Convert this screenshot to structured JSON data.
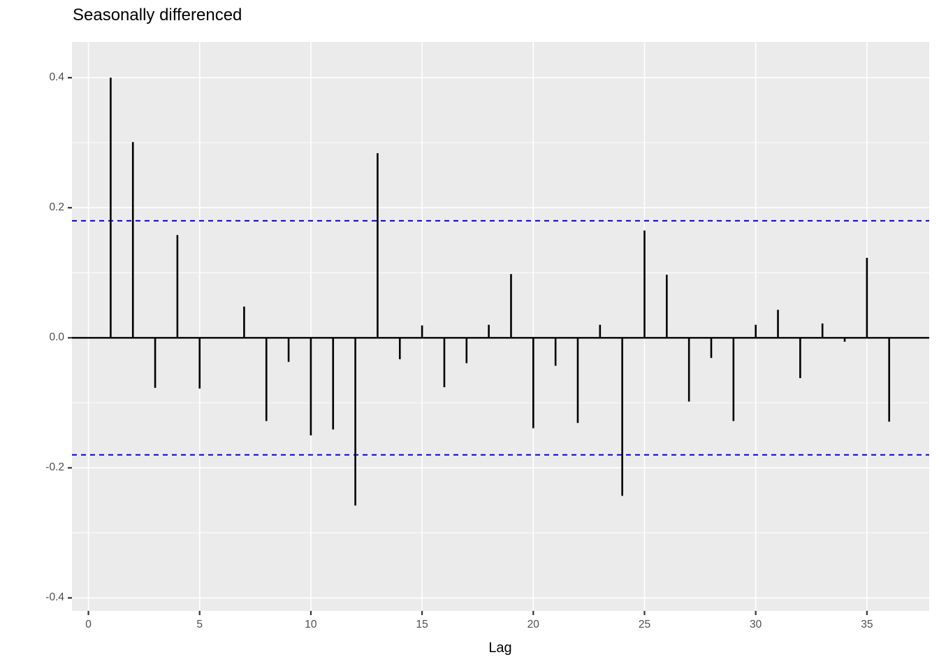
{
  "chart_data": {
    "type": "bar",
    "subtype": "acf-stem-plot",
    "title": "Seasonally differenced",
    "xlabel": "Lag",
    "ylabel": "",
    "legend": "none",
    "grid": "on",
    "panel_bg": "#EBEBEB",
    "grid_color": "#FFFFFF",
    "spike_color": "#000000",
    "zero_line_color": "#000000",
    "bound_color": "#0000EE",
    "tick_color": "#333333",
    "tick_label_color": "#4D4D4D",
    "xlim": [
      -0.74,
      37.8
    ],
    "ylim": [
      -0.42,
      0.455
    ],
    "x_ticks": [
      0,
      5,
      10,
      15,
      20,
      25,
      30,
      35
    ],
    "y_ticks": [
      "0.4",
      "0.2",
      "0.0",
      "-0.2",
      "-0.4"
    ],
    "y_tick_values": [
      0.4,
      0.2,
      0.0,
      -0.2,
      -0.4
    ],
    "y_minor_values": [
      0.3,
      0.1,
      -0.1,
      -0.3
    ],
    "confidence_bounds": [
      0.18,
      -0.18
    ],
    "lags": [
      1,
      2,
      3,
      4,
      5,
      6,
      7,
      8,
      9,
      10,
      11,
      12,
      13,
      14,
      15,
      16,
      17,
      18,
      19,
      20,
      21,
      22,
      23,
      24,
      25,
      26,
      27,
      28,
      29,
      30,
      31,
      32,
      33,
      34,
      35,
      36
    ],
    "acf": [
      0.4,
      0.301,
      -0.077,
      0.158,
      -0.078,
      0.0,
      0.048,
      -0.128,
      -0.037,
      -0.15,
      -0.141,
      -0.258,
      0.284,
      -0.033,
      0.019,
      -0.076,
      -0.039,
      0.02,
      0.098,
      -0.139,
      -0.043,
      -0.131,
      0.02,
      -0.243,
      0.165,
      0.097,
      -0.098,
      -0.031,
      -0.128,
      0.02,
      0.043,
      -0.062,
      0.022,
      -0.006,
      0.123,
      -0.129
    ]
  }
}
